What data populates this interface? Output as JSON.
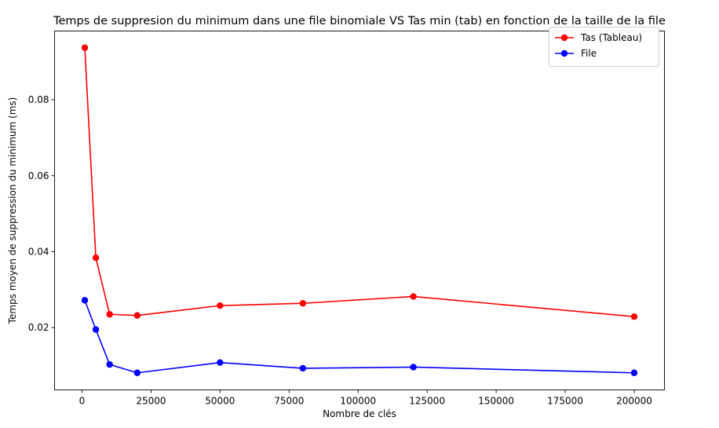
{
  "chart_data": {
    "type": "line",
    "title": "Temps de suppresion du minimum dans une file binomiale VS Tas min (tab) en fonction de la taille de la file",
    "xlabel": "Nombre de clés",
    "ylabel": "Temps moyen de suppression du minimum (ms)",
    "xlim": [
      -9950,
      210950
    ],
    "ylim": [
      0.0036,
      0.0981
    ],
    "xticks": [
      0,
      25000,
      50000,
      75000,
      100000,
      125000,
      150000,
      175000,
      200000
    ],
    "yticks": [
      0.02,
      0.04,
      0.06,
      0.08
    ],
    "ytick_labels": [
      "0.02",
      "0.04",
      "0.06",
      "0.08"
    ],
    "grid": false,
    "legend_position": "top-right",
    "x": [
      1000,
      5000,
      10000,
      20000,
      50000,
      80000,
      120000,
      200000
    ],
    "series": [
      {
        "name": "Tas (Tableau)",
        "color": "#ff0000",
        "marker": "circle",
        "values": [
          0.0937,
          0.0384,
          0.0235,
          0.0232,
          0.0258,
          0.0264,
          0.0282,
          0.0229
        ]
      },
      {
        "name": "File",
        "color": "#0000ff",
        "marker": "circle",
        "values": [
          0.0272,
          0.0195,
          0.0103,
          0.0081,
          0.0108,
          0.0093,
          0.0096,
          0.0081
        ]
      }
    ]
  }
}
